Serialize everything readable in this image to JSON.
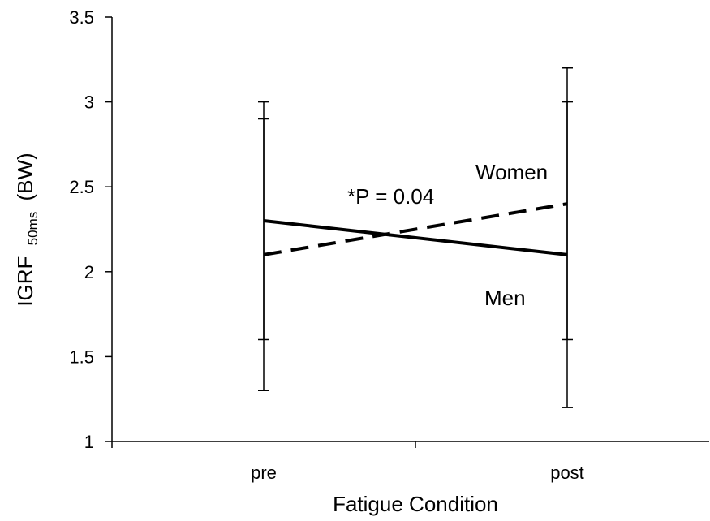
{
  "chart_data": {
    "type": "line",
    "title": "",
    "xlabel": "Fatigue Condition",
    "ylabel": {
      "main": "IGRF",
      "sub": "50ms",
      "unit": "(BW)"
    },
    "ylim": [
      1,
      3.5
    ],
    "yticks": [
      "1",
      "1.5",
      "2",
      "2.5",
      "3",
      "3.5"
    ],
    "categories": [
      "pre",
      "post"
    ],
    "grid": false,
    "legend": "none",
    "series": [
      {
        "name": "Women",
        "style": "dashed",
        "color": "#000000",
        "values": [
          2.1,
          2.4
        ],
        "error_low": [
          1.3,
          1.2
        ],
        "error_high": [
          2.9,
          3.0
        ]
      },
      {
        "name": "Men",
        "style": "solid",
        "color": "#000000",
        "values": [
          2.3,
          2.1
        ],
        "error_low": [
          1.6,
          1.6
        ],
        "error_high": [
          3.0,
          3.2
        ]
      }
    ],
    "annotations": [
      {
        "text": "*P = 0.04"
      }
    ]
  }
}
